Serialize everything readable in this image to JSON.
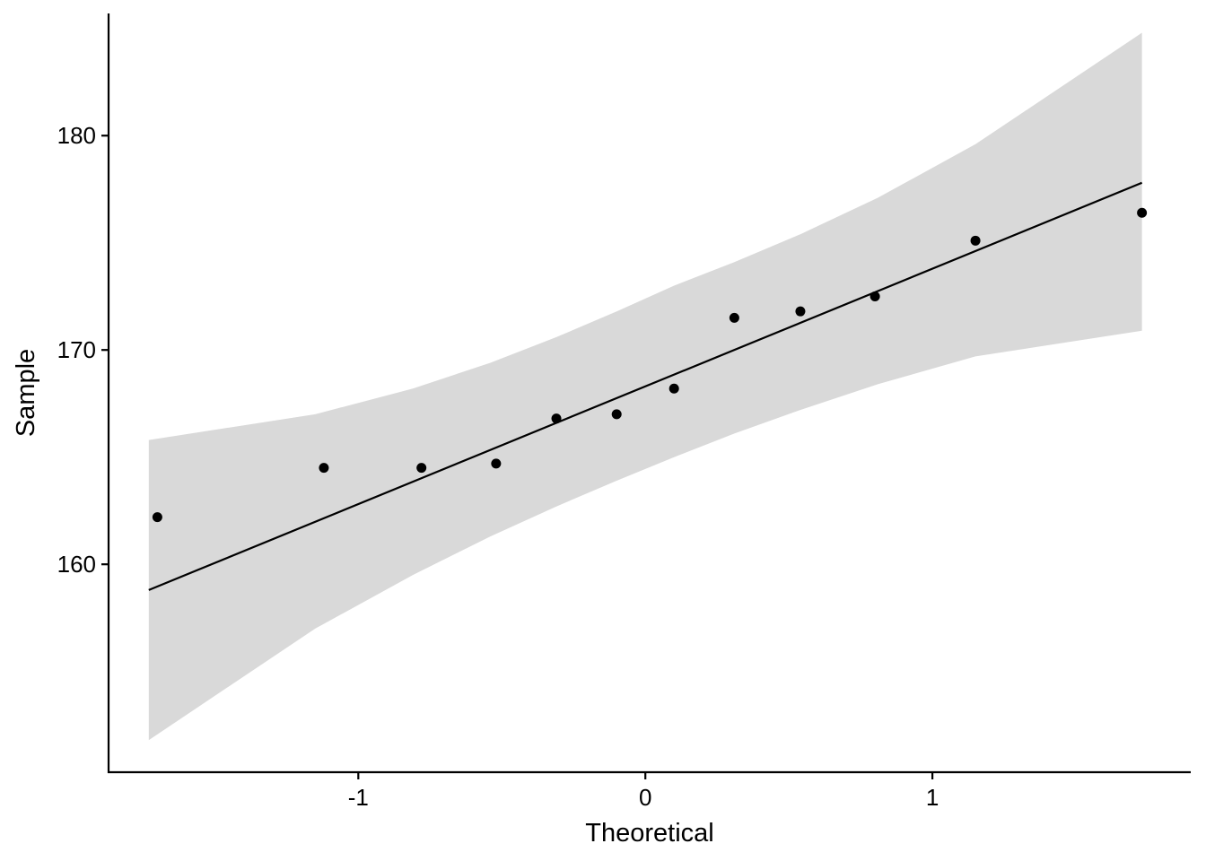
{
  "chart_data": {
    "type": "scatter",
    "title": "",
    "xlabel": "Theoretical",
    "ylabel": "Sample",
    "xlim": [
      -1.87,
      1.9
    ],
    "ylim": [
      150.3,
      185.7
    ],
    "xticks": [
      -1,
      0,
      1
    ],
    "xtick_labels": [
      "-1",
      "0",
      "1"
    ],
    "yticks": [
      160,
      170,
      180
    ],
    "ytick_labels": [
      "160",
      "170",
      "180"
    ],
    "grid": false,
    "legend": "none",
    "points": [
      {
        "x": -1.7,
        "y": 162.2
      },
      {
        "x": -1.12,
        "y": 164.5
      },
      {
        "x": -0.78,
        "y": 164.5
      },
      {
        "x": -0.52,
        "y": 164.7
      },
      {
        "x": -0.31,
        "y": 166.8
      },
      {
        "x": -0.1,
        "y": 167.0
      },
      {
        "x": 0.1,
        "y": 168.2
      },
      {
        "x": 0.31,
        "y": 171.5
      },
      {
        "x": 0.54,
        "y": 171.8
      },
      {
        "x": 0.8,
        "y": 172.5
      },
      {
        "x": 1.15,
        "y": 175.1
      },
      {
        "x": 1.73,
        "y": 176.4
      }
    ],
    "reference_line": {
      "x": [
        -1.73,
        1.73
      ],
      "y": [
        158.8,
        177.8
      ]
    },
    "confidence_band": {
      "x": [
        -1.73,
        -1.15,
        -0.81,
        -0.54,
        -0.31,
        -0.1,
        0.1,
        0.31,
        0.54,
        0.81,
        1.15,
        1.73
      ],
      "upper": [
        165.8,
        167.0,
        168.2,
        169.4,
        170.6,
        171.8,
        173.0,
        174.1,
        175.4,
        177.1,
        179.6,
        184.8
      ],
      "lower": [
        151.8,
        157.0,
        159.5,
        161.3,
        162.7,
        163.9,
        165.0,
        166.1,
        167.2,
        168.4,
        169.7,
        170.9
      ]
    },
    "colors": {
      "points": "#000000",
      "line": "#000000",
      "band": "#d9d9d9",
      "axis": "#000000"
    }
  }
}
